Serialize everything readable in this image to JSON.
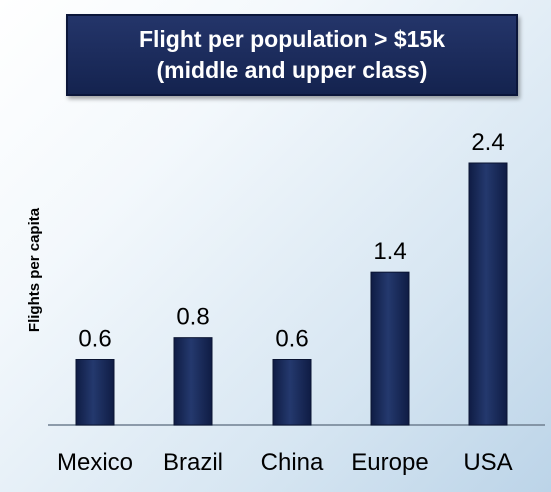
{
  "chart_data": {
    "type": "bar",
    "title": "Flight per population > $15k",
    "subtitle": "(middle and upper class)",
    "ylabel": "Flights per capita",
    "xlabel": "",
    "categories": [
      "Mexico",
      "Brazil",
      "China",
      "Europe",
      "USA"
    ],
    "values": [
      0.6,
      0.8,
      0.6,
      1.4,
      2.4
    ],
    "value_labels": [
      "0.6",
      "0.8",
      "0.6",
      "1.4",
      "2.4"
    ],
    "ylim": [
      0,
      2.4
    ],
    "grid": false,
    "legend": "none",
    "colors": {
      "bar": "#14234f",
      "bar_highlight": "#3d5a92",
      "title_bg": "#1b2b5c"
    }
  }
}
